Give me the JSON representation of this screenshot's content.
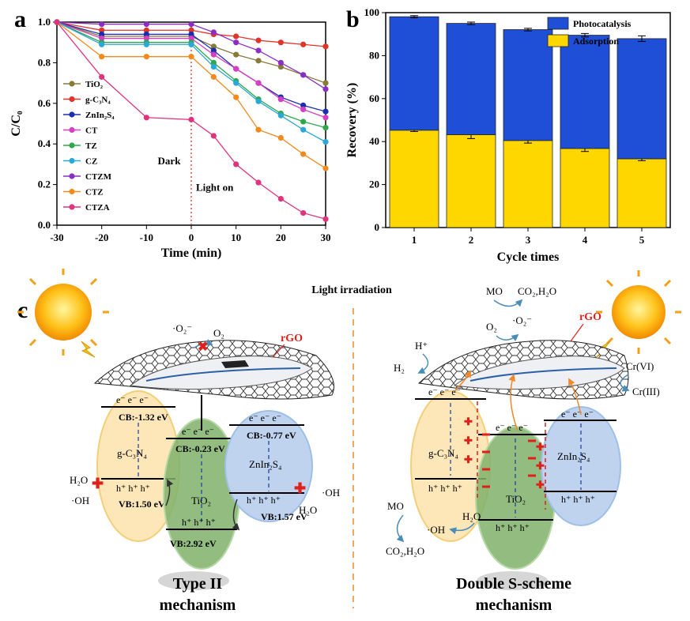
{
  "panel_labels": {
    "a": "a",
    "b": "b",
    "c": "c"
  },
  "chart_data": [
    {
      "type": "line",
      "panel": "a",
      "xlabel": "Time (min)",
      "ylabel": "C/C₀",
      "xlim": [
        -30,
        30
      ],
      "ylim": [
        0.0,
        1.0
      ],
      "xticks": [
        -30,
        -20,
        -10,
        0,
        10,
        20,
        30
      ],
      "yticks": [
        0.0,
        0.2,
        0.4,
        0.6,
        0.8,
        1.0
      ],
      "annotations": {
        "dark": "Dark",
        "light": "Light on"
      },
      "x": [
        -30,
        -20,
        -10,
        0,
        5,
        10,
        15,
        20,
        25,
        30
      ],
      "series": [
        {
          "name": "TiO₂",
          "color": "#8a7a3a",
          "values": [
            1.0,
            0.93,
            0.93,
            0.93,
            0.88,
            0.84,
            0.81,
            0.78,
            0.74,
            0.7
          ]
        },
        {
          "name": "g-C₃N₄",
          "color": "#e0352b",
          "values": [
            1.0,
            0.96,
            0.96,
            0.96,
            0.94,
            0.93,
            0.91,
            0.9,
            0.89,
            0.88
          ]
        },
        {
          "name": "ZnIn₂S₄",
          "color": "#1a2fb0",
          "values": [
            1.0,
            0.94,
            0.94,
            0.94,
            0.86,
            0.77,
            0.7,
            0.63,
            0.59,
            0.56
          ]
        },
        {
          "name": "CT",
          "color": "#d63fc4",
          "values": [
            1.0,
            0.92,
            0.92,
            0.92,
            0.84,
            0.77,
            0.7,
            0.62,
            0.57,
            0.53
          ]
        },
        {
          "name": "TZ",
          "color": "#2ea84a",
          "values": [
            1.0,
            0.9,
            0.9,
            0.9,
            0.8,
            0.71,
            0.62,
            0.55,
            0.51,
            0.48
          ]
        },
        {
          "name": "CZ",
          "color": "#2aa8d8",
          "values": [
            1.0,
            0.89,
            0.89,
            0.89,
            0.78,
            0.7,
            0.61,
            0.54,
            0.47,
            0.41
          ]
        },
        {
          "name": "CTZM",
          "color": "#8b2fc4",
          "values": [
            1.0,
            0.99,
            0.99,
            0.99,
            0.95,
            0.9,
            0.86,
            0.8,
            0.74,
            0.67
          ]
        },
        {
          "name": "CTZ",
          "color": "#f28a1e",
          "values": [
            1.0,
            0.83,
            0.83,
            0.83,
            0.73,
            0.63,
            0.47,
            0.43,
            0.35,
            0.28
          ]
        },
        {
          "name": "CTZA",
          "color": "#e0337e",
          "values": [
            1.0,
            0.73,
            0.53,
            0.52,
            0.44,
            0.3,
            0.21,
            0.13,
            0.06,
            0.03
          ]
        }
      ]
    },
    {
      "type": "bar",
      "panel": "b",
      "stacked": true,
      "xlabel": "Cycle times",
      "ylabel": "Recovery (%)",
      "ylim": [
        0,
        100
      ],
      "yticks": [
        0,
        20,
        40,
        60,
        80,
        100
      ],
      "categories": [
        "1",
        "2",
        "3",
        "4",
        "5"
      ],
      "series": [
        {
          "name": "Adsorption",
          "color": "#ffd700",
          "values": [
            45.3,
            43.2,
            40.5,
            36.8,
            32.0
          ],
          "errors": [
            0.6,
            1.8,
            1.2,
            1.4,
            0.9
          ]
        },
        {
          "name": "Photocatalysis",
          "color": "#1f4fd6",
          "values": [
            52.8,
            51.8,
            51.6,
            52.7,
            55.9
          ],
          "errors": [
            0.5,
            0.6,
            0.6,
            0.8,
            1.3
          ]
        }
      ]
    }
  ],
  "scheme": {
    "light_irradiation": "Light irradiation",
    "left": {
      "title_line1": "Type II",
      "title_line2": "mechanism",
      "rgo": "rGO",
      "o2_radical": "·O₂⁻",
      "o2": "O₂",
      "gcn": {
        "name": "g-C₃N₄",
        "cb": "CB:-1.32 eV",
        "vb": "VB:1.50 eV"
      },
      "tio2": {
        "name": "TiO₂",
        "cb": "CB:-0.23 eV",
        "vb": "VB:2.92 eV"
      },
      "zis": {
        "name": "ZnIn₂S₄",
        "cb": "CB:-0.77 eV",
        "vb": "VB:1.57 eV"
      },
      "h2o": "H₂O",
      "oh": "·OH",
      "h2o_right": "H₂O",
      "oh_right": "·OH",
      "electrons": "e⁻  e⁻  e⁻",
      "holes": "h⁺  h⁺  h⁺"
    },
    "right": {
      "title_line1": "Double S-scheme",
      "title_line2": "mechanism",
      "rgo": "rGO",
      "mo_top": "MO",
      "co2_top": "CO₂,H₂O",
      "o2_radical": "·O₂⁻",
      "o2": "O₂",
      "h_plus": "H⁺",
      "h2": "H₂",
      "cr6": "Cr(VI)",
      "cr3": "Cr(III)",
      "gcn": "g-C₃N₄",
      "tio2": "TiO₂",
      "zis": "ZnIn₂S₄",
      "mo_bottom": "MO",
      "oh": "·OH",
      "h2o": "H₂O",
      "co2_bottom": "CO₂,H₂O",
      "electrons": "e⁻  e⁻  e⁻",
      "holes": "h⁺  h⁺  h⁺"
    }
  }
}
